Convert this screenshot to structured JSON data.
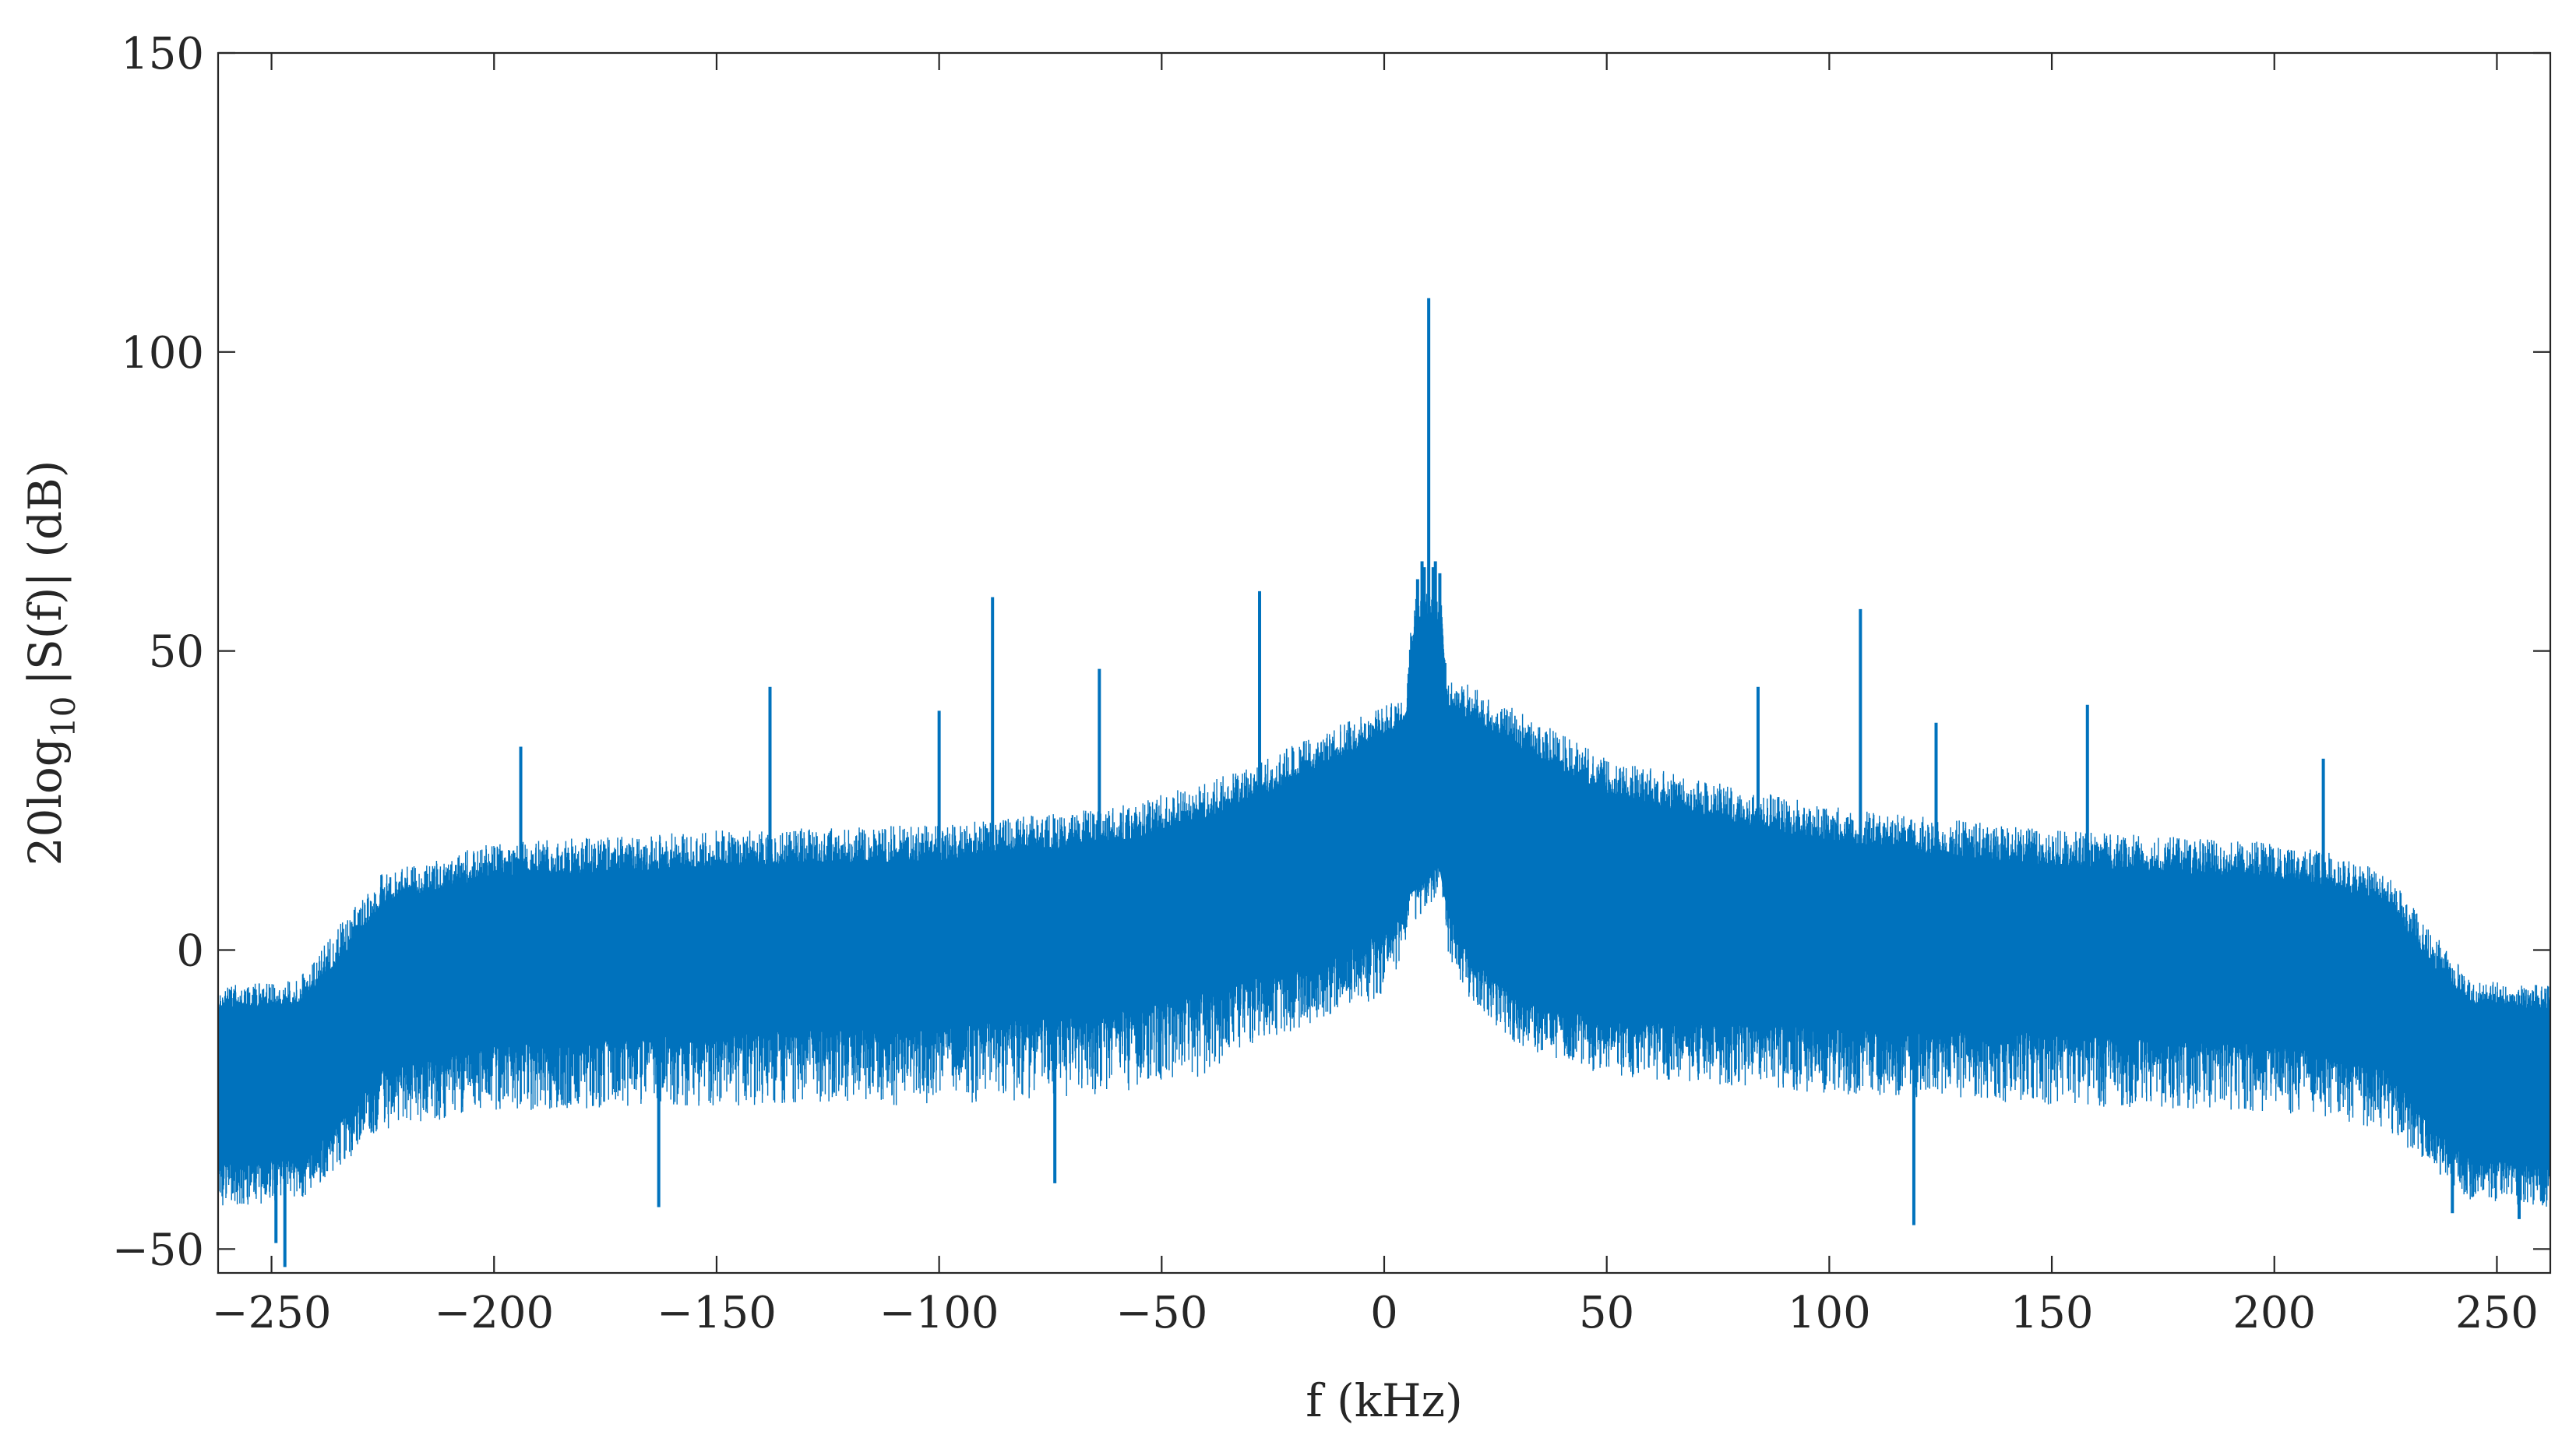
{
  "chart_data": {
    "type": "line",
    "title": "",
    "xlabel": "f (kHz)",
    "ylabel": {
      "prefix": "20log",
      "subscript": "10",
      "suffix": "|S(f)| (dB)"
    },
    "xlim": [
      -262,
      262
    ],
    "ylim": [
      -54,
      150
    ],
    "xticks": [
      -250,
      -200,
      -150,
      -100,
      -50,
      0,
      50,
      100,
      150,
      200,
      250
    ],
    "xtick_labels": [
      "−250",
      "−200",
      "−150",
      "−100",
      "−50",
      "0",
      "50",
      "100",
      "150",
      "200",
      "250"
    ],
    "yticks": [
      -50,
      0,
      50,
      100,
      150
    ],
    "ytick_labels": [
      "−50",
      "0",
      "50",
      "100",
      "150"
    ],
    "grid": false,
    "series": [
      {
        "color": "#0072BD",
        "style": "dense-noise",
        "envelope": {
          "x": [
            -262,
            -244,
            -236,
            -225,
            -200,
            -150,
            -100,
            -60,
            -40,
            -30,
            -15,
            0,
            5,
            6,
            7,
            13,
            14,
            20,
            30,
            50,
            100,
            150,
            200,
            210,
            225,
            236,
            244,
            262
          ],
          "upper": [
            -6,
            -5,
            3,
            13,
            18,
            20,
            21,
            24,
            28,
            31,
            36,
            41,
            42,
            55,
            60,
            60,
            46,
            44,
            40,
            32,
            24,
            20,
            18,
            17,
            13,
            3,
            -5,
            -6
          ],
          "core_upper": [
            -10,
            -9,
            -3,
            8,
            12,
            14,
            15,
            18,
            22,
            25,
            30,
            36,
            38,
            48,
            55,
            55,
            40,
            38,
            34,
            26,
            18,
            14,
            12,
            11,
            8,
            -3,
            -9,
            -10
          ],
          "core_lower": [
            -36,
            -35,
            -30,
            -20,
            -16,
            -14,
            -13,
            -10,
            -7,
            -5,
            -3,
            3,
            7,
            15,
            10,
            15,
            7,
            -2,
            -8,
            -12,
            -13,
            -14,
            -16,
            -17,
            -20,
            -30,
            -35,
            -36
          ],
          "lower": [
            -43,
            -42,
            -37,
            -30,
            -27,
            -26,
            -26,
            -24,
            -21,
            -16,
            -12,
            -8,
            0,
            10,
            5,
            10,
            0,
            -10,
            -16,
            -21,
            -24,
            -26,
            -27,
            -28,
            -30,
            -37,
            -42,
            -43
          ]
        },
        "peaks": [
          {
            "x": 10,
            "y": 109
          },
          {
            "x": 8.5,
            "y": 65
          },
          {
            "x": 11.5,
            "y": 65
          },
          {
            "x": 7.5,
            "y": 62
          },
          {
            "x": 12.5,
            "y": 63
          },
          {
            "x": 9,
            "y": 64
          },
          {
            "x": 11,
            "y": 64
          },
          {
            "x": -88,
            "y": 59
          },
          {
            "x": -28,
            "y": 60
          },
          {
            "x": -64,
            "y": 47
          },
          {
            "x": -138,
            "y": 44
          },
          {
            "x": -100,
            "y": 40
          },
          {
            "x": -194,
            "y": 34
          },
          {
            "x": 84,
            "y": 44
          },
          {
            "x": 107,
            "y": 57
          },
          {
            "x": 158,
            "y": 41
          },
          {
            "x": 124,
            "y": 38
          },
          {
            "x": 211,
            "y": 32
          }
        ],
        "dips": [
          {
            "x": -247,
            "y": -53
          },
          {
            "x": -249,
            "y": -49
          },
          {
            "x": -163,
            "y": -43
          },
          {
            "x": -74,
            "y": -39
          },
          {
            "x": 119,
            "y": -46
          },
          {
            "x": 240,
            "y": -44
          },
          {
            "x": 255,
            "y": -45
          }
        ]
      }
    ]
  }
}
